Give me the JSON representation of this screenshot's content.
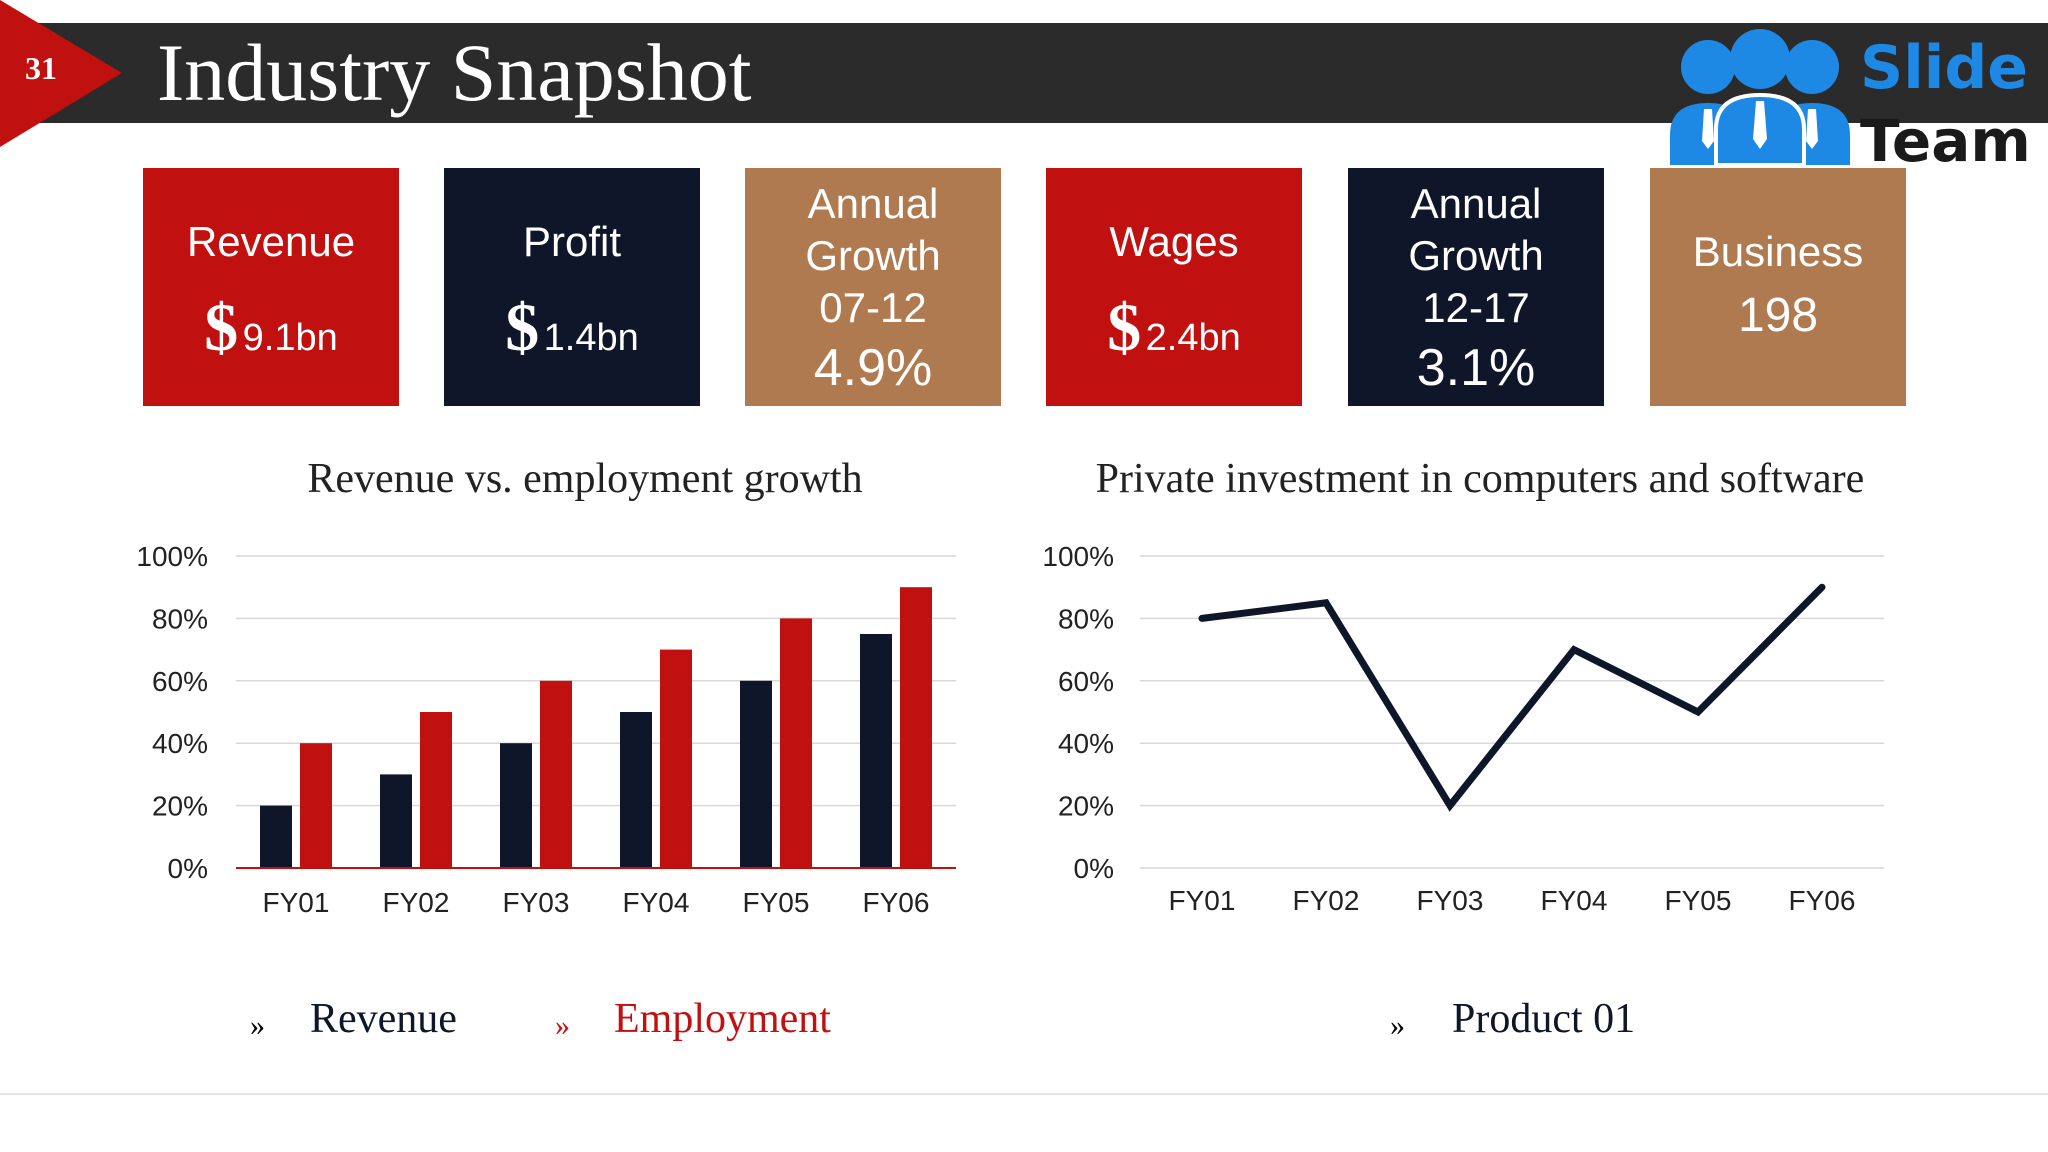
{
  "slide": {
    "number": "31",
    "title": "Industry Snapshot"
  },
  "logo": {
    "line1": "Slide",
    "line2": "Team"
  },
  "stats": [
    {
      "label": "Revenue",
      "symbol": "$",
      "value": "9.1bn"
    },
    {
      "label": "Profit",
      "symbol": "$",
      "value": "1.4bn"
    },
    {
      "label": "Annual\nGrowth\n07-12",
      "value": "4.9%"
    },
    {
      "label": "Wages",
      "symbol": "$",
      "value": "2.4bn"
    },
    {
      "label": "Annual\nGrowth\n12-17",
      "value": "3.1%"
    },
    {
      "label": "Business",
      "value": "198"
    }
  ],
  "colors": {
    "red": "#c0100f",
    "navy": "#0f1629",
    "tan": "#b07a50",
    "title_bar": "#2b2b2b",
    "logo_blue": "#1e88e5"
  },
  "legend_left": [
    {
      "marker": "»",
      "label": "Revenue",
      "color": "#0f1629"
    },
    {
      "marker": "»",
      "label": "Employment",
      "color": "#c0100f"
    }
  ],
  "legend_right": [
    {
      "marker": "»",
      "label": "Product 01",
      "color": "#0f1629"
    }
  ],
  "chart_data": [
    {
      "type": "bar",
      "title": "Revenue vs. employment growth",
      "categories": [
        "FY01",
        "FY02",
        "FY03",
        "FY04",
        "FY05",
        "FY06"
      ],
      "series": [
        {
          "name": "Revenue",
          "values": [
            20,
            30,
            40,
            50,
            60,
            75
          ],
          "color": "#0f1629"
        },
        {
          "name": "Employment",
          "values": [
            40,
            50,
            60,
            70,
            80,
            90
          ],
          "color": "#c0100f"
        }
      ],
      "ylim": [
        0,
        100
      ],
      "yticks": [
        "0%",
        "20%",
        "40%",
        "60%",
        "80%",
        "100%"
      ],
      "grid": true,
      "legend": "bottom"
    },
    {
      "type": "line",
      "title": "Private investment in computers and software",
      "categories": [
        "FY01",
        "FY02",
        "FY03",
        "FY04",
        "FY05",
        "FY06"
      ],
      "series": [
        {
          "name": "Product 01",
          "values": [
            80,
            85,
            20,
            70,
            50,
            90
          ],
          "color": "#0f1629"
        }
      ],
      "ylim": [
        0,
        100
      ],
      "yticks": [
        "0%",
        "20%",
        "40%",
        "60%",
        "80%",
        "100%"
      ],
      "grid": true,
      "legend": "bottom"
    }
  ]
}
